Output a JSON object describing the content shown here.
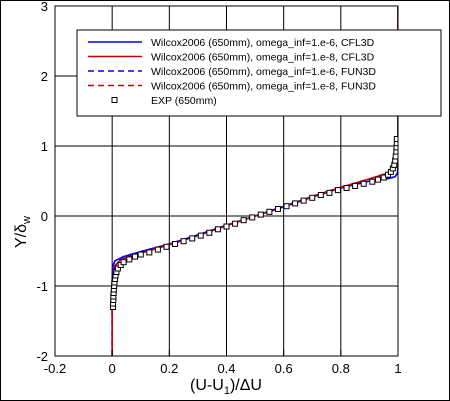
{
  "chart_data": {
    "type": "line",
    "xlabel": "(U-U",
    "xlabel_sub": "1",
    "xlabel_tail": ")/ΔU",
    "ylabel": "Y/δ",
    "ylabel_sub": "w",
    "xlim": [
      -0.2,
      1.0
    ],
    "ylim": [
      -2,
      3
    ],
    "xticks": [
      "-0.2",
      "0",
      "0.2",
      "0.4",
      "0.6",
      "0.8",
      "1"
    ],
    "yticks": [
      "-2",
      "-1",
      "0",
      "1",
      "2",
      "3"
    ],
    "grid": true,
    "legend_position": "top-right",
    "series": [
      {
        "name": "Wilcox2006 (650mm), omega_inf=1.e-6, CFL3D",
        "color": "#0000ff",
        "dash": "solid",
        "points": [
          [
            0.0,
            -2.0
          ],
          [
            0.0,
            -0.9
          ],
          [
            0.002,
            -0.72
          ],
          [
            0.01,
            -0.64
          ],
          [
            0.04,
            -0.58
          ],
          [
            0.1,
            -0.51
          ],
          [
            0.2,
            -0.4
          ],
          [
            0.3,
            -0.27
          ],
          [
            0.4,
            -0.13
          ],
          [
            0.5,
            0.0
          ],
          [
            0.6,
            0.13
          ],
          [
            0.7,
            0.27
          ],
          [
            0.8,
            0.4
          ],
          [
            0.9,
            0.5
          ],
          [
            0.96,
            0.53
          ],
          [
            0.99,
            0.56
          ],
          [
            0.999,
            0.62
          ],
          [
            1.0,
            0.9
          ],
          [
            1.0,
            3.0
          ]
        ]
      },
      {
        "name": "Wilcox2006 (650mm), omega_inf=1.e-8, CFL3D",
        "color": "#cc0000",
        "dash": "solid",
        "points": [
          [
            0.0,
            -2.0
          ],
          [
            0.0,
            -1.2
          ],
          [
            0.002,
            -0.9
          ],
          [
            0.008,
            -0.72
          ],
          [
            0.03,
            -0.62
          ],
          [
            0.1,
            -0.53
          ],
          [
            0.2,
            -0.41
          ],
          [
            0.3,
            -0.28
          ],
          [
            0.4,
            -0.14
          ],
          [
            0.5,
            0.0
          ],
          [
            0.6,
            0.14
          ],
          [
            0.7,
            0.28
          ],
          [
            0.8,
            0.41
          ],
          [
            0.9,
            0.53
          ],
          [
            0.97,
            0.62
          ],
          [
            0.992,
            0.72
          ],
          [
            0.998,
            0.9
          ],
          [
            1.0,
            1.2
          ],
          [
            1.0,
            1.9
          ],
          [
            1.0,
            3.0
          ]
        ]
      },
      {
        "name": "Wilcox2006 (650mm), omega_inf=1.e-6, FUN3D",
        "color": "#0000ff",
        "dash": "dashed",
        "points": [
          [
            0.0,
            -2.0
          ],
          [
            0.0,
            -0.9
          ],
          [
            0.002,
            -0.72
          ],
          [
            0.01,
            -0.64
          ],
          [
            0.04,
            -0.58
          ],
          [
            0.1,
            -0.51
          ],
          [
            0.2,
            -0.4
          ],
          [
            0.3,
            -0.27
          ],
          [
            0.4,
            -0.13
          ],
          [
            0.5,
            0.0
          ],
          [
            0.6,
            0.13
          ],
          [
            0.7,
            0.27
          ],
          [
            0.8,
            0.4
          ],
          [
            0.9,
            0.5
          ],
          [
            0.96,
            0.53
          ],
          [
            0.99,
            0.56
          ],
          [
            0.999,
            0.62
          ],
          [
            1.0,
            0.9
          ],
          [
            1.0,
            3.0
          ]
        ]
      },
      {
        "name": "Wilcox2006 (650mm), omega_inf=1.e-8, FUN3D",
        "color": "#cc0000",
        "dash": "dashed",
        "points": [
          [
            0.0,
            -2.0
          ],
          [
            0.0,
            -1.2
          ],
          [
            0.002,
            -0.9
          ],
          [
            0.008,
            -0.72
          ],
          [
            0.03,
            -0.62
          ],
          [
            0.1,
            -0.53
          ],
          [
            0.2,
            -0.41
          ],
          [
            0.3,
            -0.28
          ],
          [
            0.4,
            -0.14
          ],
          [
            0.5,
            0.0
          ],
          [
            0.6,
            0.14
          ],
          [
            0.7,
            0.28
          ],
          [
            0.8,
            0.41
          ],
          [
            0.9,
            0.53
          ],
          [
            0.97,
            0.62
          ],
          [
            0.992,
            0.72
          ],
          [
            0.998,
            0.9
          ],
          [
            1.0,
            1.2
          ],
          [
            1.0,
            1.9
          ],
          [
            1.0,
            3.0
          ]
        ]
      },
      {
        "name": "EXP (650mm)",
        "color": "#000000",
        "marker": "square",
        "points": [
          [
            0.003,
            -1.3
          ],
          [
            0.003,
            -1.25
          ],
          [
            0.004,
            -1.2
          ],
          [
            0.004,
            -1.15
          ],
          [
            0.005,
            -1.1
          ],
          [
            0.006,
            -1.05
          ],
          [
            0.007,
            -1.0
          ],
          [
            0.008,
            -0.95
          ],
          [
            0.01,
            -0.9
          ],
          [
            0.012,
            -0.85
          ],
          [
            0.015,
            -0.8
          ],
          [
            0.02,
            -0.75
          ],
          [
            0.03,
            -0.7
          ],
          [
            0.04,
            -0.66
          ],
          [
            0.06,
            -0.62
          ],
          [
            0.08,
            -0.58
          ],
          [
            0.1,
            -0.55
          ],
          [
            0.13,
            -0.52
          ],
          [
            0.16,
            -0.48
          ],
          [
            0.19,
            -0.44
          ],
          [
            0.22,
            -0.4
          ],
          [
            0.25,
            -0.36
          ],
          [
            0.28,
            -0.32
          ],
          [
            0.31,
            -0.28
          ],
          [
            0.34,
            -0.24
          ],
          [
            0.37,
            -0.19
          ],
          [
            0.4,
            -0.15
          ],
          [
            0.43,
            -0.11
          ],
          [
            0.46,
            -0.06
          ],
          [
            0.49,
            -0.02
          ],
          [
            0.52,
            0.02
          ],
          [
            0.55,
            0.06
          ],
          [
            0.58,
            0.1
          ],
          [
            0.61,
            0.14
          ],
          [
            0.64,
            0.18
          ],
          [
            0.67,
            0.22
          ],
          [
            0.7,
            0.26
          ],
          [
            0.73,
            0.3
          ],
          [
            0.76,
            0.33
          ],
          [
            0.79,
            0.37
          ],
          [
            0.82,
            0.4
          ],
          [
            0.85,
            0.43
          ],
          [
            0.88,
            0.46
          ],
          [
            0.91,
            0.49
          ],
          [
            0.93,
            0.52
          ],
          [
            0.95,
            0.55
          ],
          [
            0.965,
            0.59
          ],
          [
            0.975,
            0.63
          ],
          [
            0.982,
            0.68
          ],
          [
            0.987,
            0.73
          ],
          [
            0.99,
            0.79
          ],
          [
            0.992,
            0.85
          ],
          [
            0.994,
            0.92
          ],
          [
            0.995,
            0.98
          ],
          [
            0.996,
            1.04
          ],
          [
            0.996,
            1.1
          ]
        ]
      }
    ]
  }
}
